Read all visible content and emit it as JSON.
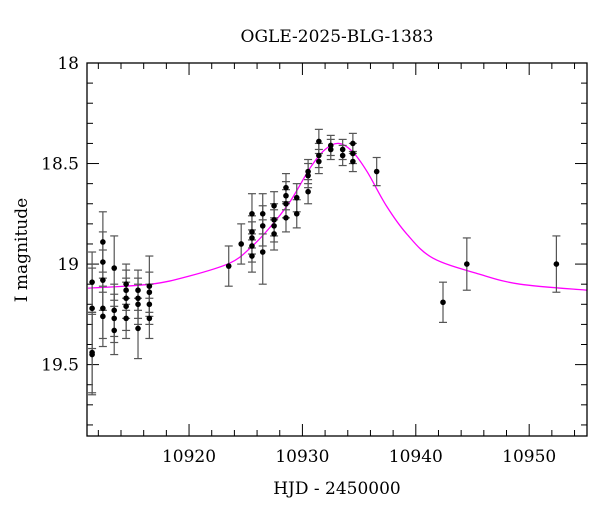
{
  "chart_data": {
    "type": "scatter",
    "title": "OGLE-2025-BLG-1383",
    "xlabel": "HJD - 2450000",
    "ylabel": "I magnitude",
    "xlim": [
      10911,
      10955.1
    ],
    "ylim": [
      18,
      19.855
    ],
    "y_inverted": true,
    "grid": false,
    "x_ticks": [
      10920,
      10930,
      10940,
      10950
    ],
    "y_ticks": [
      18,
      18.5,
      19,
      19.5
    ],
    "x_tick_labels": [
      "10920",
      "10930",
      "10940",
      "10950"
    ],
    "y_tick_labels": [
      "18",
      "18.5",
      "19",
      "19.5"
    ],
    "x_minor_step": 2,
    "y_minor_step": 0.1,
    "colors": {
      "points": "#000000",
      "errorbars": "#555555",
      "model": "#ff00ff"
    },
    "points": [
      {
        "x": 10911.45,
        "y": 19.09,
        "err": 0.15
      },
      {
        "x": 10911.45,
        "y": 19.22,
        "err": 0.2
      },
      {
        "x": 10911.45,
        "y": 19.44,
        "err": 0.2
      },
      {
        "x": 10911.45,
        "y": 19.45,
        "err": 0.2
      },
      {
        "x": 10912.4,
        "y": 18.89,
        "err": 0.15
      },
      {
        "x": 10912.4,
        "y": 18.99,
        "err": 0.15
      },
      {
        "x": 10912.4,
        "y": 19.08,
        "err": 0.15
      },
      {
        "x": 10912.4,
        "y": 19.22,
        "err": 0.15
      },
      {
        "x": 10912.4,
        "y": 19.26,
        "err": 0.15
      },
      {
        "x": 10913.4,
        "y": 19.02,
        "err": 0.16
      },
      {
        "x": 10913.4,
        "y": 19.23,
        "err": 0.13
      },
      {
        "x": 10913.4,
        "y": 19.27,
        "err": 0.12
      },
      {
        "x": 10913.4,
        "y": 19.33,
        "err": 0.12
      },
      {
        "x": 10914.45,
        "y": 19.1,
        "err": 0.1
      },
      {
        "x": 10914.45,
        "y": 19.13,
        "err": 0.1
      },
      {
        "x": 10914.45,
        "y": 19.17,
        "err": 0.1
      },
      {
        "x": 10914.45,
        "y": 19.21,
        "err": 0.12
      },
      {
        "x": 10914.45,
        "y": 19.27,
        "err": 0.1
      },
      {
        "x": 10915.5,
        "y": 19.13,
        "err": 0.1
      },
      {
        "x": 10915.5,
        "y": 19.17,
        "err": 0.1
      },
      {
        "x": 10915.5,
        "y": 19.2,
        "err": 0.1
      },
      {
        "x": 10915.5,
        "y": 19.32,
        "err": 0.15
      },
      {
        "x": 10916.5,
        "y": 19.11,
        "err": 0.15
      },
      {
        "x": 10916.5,
        "y": 19.14,
        "err": 0.1
      },
      {
        "x": 10916.5,
        "y": 19.2,
        "err": 0.1
      },
      {
        "x": 10916.5,
        "y": 19.27,
        "err": 0.1
      },
      {
        "x": 10923.5,
        "y": 19.01,
        "err": 0.1
      },
      {
        "x": 10924.6,
        "y": 18.9,
        "err": 0.1
      },
      {
        "x": 10925.55,
        "y": 18.75,
        "err": 0.1
      },
      {
        "x": 10925.55,
        "y": 18.84,
        "err": 0.08
      },
      {
        "x": 10925.55,
        "y": 18.87,
        "err": 0.08
      },
      {
        "x": 10925.55,
        "y": 18.91,
        "err": 0.08
      },
      {
        "x": 10925.55,
        "y": 18.96,
        "err": 0.08
      },
      {
        "x": 10926.5,
        "y": 18.75,
        "err": 0.1
      },
      {
        "x": 10926.5,
        "y": 18.81,
        "err": 0.1
      },
      {
        "x": 10926.5,
        "y": 18.94,
        "err": 0.16
      },
      {
        "x": 10927.5,
        "y": 18.71,
        "err": 0.07
      },
      {
        "x": 10927.5,
        "y": 18.78,
        "err": 0.08
      },
      {
        "x": 10927.5,
        "y": 18.81,
        "err": 0.08
      },
      {
        "x": 10927.5,
        "y": 18.85,
        "err": 0.08
      },
      {
        "x": 10928.55,
        "y": 18.62,
        "err": 0.07
      },
      {
        "x": 10928.55,
        "y": 18.66,
        "err": 0.07
      },
      {
        "x": 10928.55,
        "y": 18.7,
        "err": 0.07
      },
      {
        "x": 10928.55,
        "y": 18.77,
        "err": 0.07
      },
      {
        "x": 10929.5,
        "y": 18.67,
        "err": 0.07
      },
      {
        "x": 10929.5,
        "y": 18.75,
        "err": 0.07
      },
      {
        "x": 10930.5,
        "y": 18.54,
        "err": 0.06
      },
      {
        "x": 10930.5,
        "y": 18.56,
        "err": 0.06
      },
      {
        "x": 10930.5,
        "y": 18.64,
        "err": 0.06
      },
      {
        "x": 10931.45,
        "y": 18.39,
        "err": 0.06
      },
      {
        "x": 10931.45,
        "y": 18.46,
        "err": 0.06
      },
      {
        "x": 10931.45,
        "y": 18.49,
        "err": 0.06
      },
      {
        "x": 10932.5,
        "y": 18.41,
        "err": 0.05
      },
      {
        "x": 10932.5,
        "y": 18.43,
        "err": 0.05
      },
      {
        "x": 10933.55,
        "y": 18.43,
        "err": 0.05
      },
      {
        "x": 10933.55,
        "y": 18.46,
        "err": 0.05
      },
      {
        "x": 10934.45,
        "y": 18.4,
        "err": 0.05
      },
      {
        "x": 10934.45,
        "y": 18.45,
        "err": 0.05
      },
      {
        "x": 10934.45,
        "y": 18.49,
        "err": 0.05
      },
      {
        "x": 10936.55,
        "y": 18.54,
        "err": 0.07
      },
      {
        "x": 10942.4,
        "y": 19.19,
        "err": 0.1
      },
      {
        "x": 10944.5,
        "y": 19.0,
        "err": 0.13
      },
      {
        "x": 10952.4,
        "y": 19.0,
        "err": 0.14
      }
    ],
    "model": {
      "x": [
        10911.1,
        10916.6,
        10920,
        10923.6,
        10925.4,
        10927.1,
        10928.9,
        10930.7,
        10932,
        10933.2,
        10934.4,
        10935.7,
        10937.4,
        10939.2,
        10941.5,
        10945.6,
        10949.2,
        10955.1
      ],
      "y": [
        19.12,
        19.1,
        19.06,
        18.995,
        18.92,
        18.82,
        18.69,
        18.52,
        18.43,
        18.4,
        18.44,
        18.54,
        18.71,
        18.85,
        18.97,
        19.05,
        19.1,
        19.13
      ]
    }
  }
}
